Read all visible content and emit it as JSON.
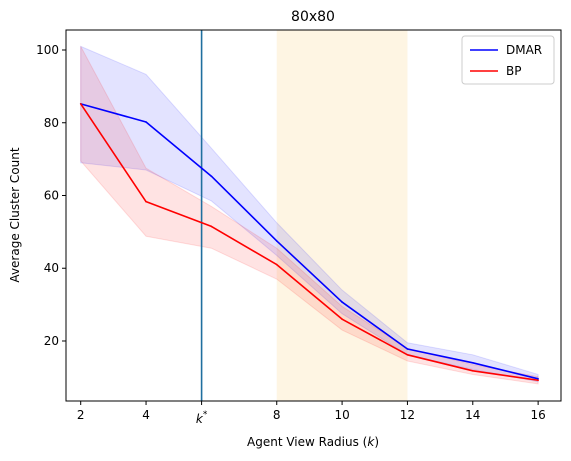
{
  "chart_data": {
    "type": "line",
    "title": "80x80",
    "xlabel": "Agent View Radius (k)",
    "ylabel": "Average Cluster Count",
    "xlim": [
      1.55,
      16.7
    ],
    "ylim": [
      3.5,
      105.5
    ],
    "xticks": [
      2,
      4,
      8,
      10,
      12,
      14,
      16
    ],
    "yticks": [
      20,
      40,
      60,
      80,
      100
    ],
    "special_tick": {
      "x": 5.7,
      "label": "k*"
    },
    "vertical_line": {
      "x": 5.7,
      "color": "#1f6f9f"
    },
    "highlight_band": {
      "x0": 8,
      "x1": 12,
      "color": "#fdebc8"
    },
    "legend": "top-right",
    "grid": false,
    "series": [
      {
        "name": "DMAR",
        "color": "#0000ff",
        "x": [
          2,
          4,
          6,
          8,
          10,
          12,
          14,
          16
        ],
        "y": [
          85.2,
          80.2,
          65.3,
          47.5,
          30.7,
          17.8,
          14.0,
          9.6
        ],
        "lower": [
          69.0,
          67.0,
          58.5,
          43.5,
          27.5,
          16.2,
          12.2,
          8.8
        ],
        "upper": [
          101.0,
          93.3,
          73.0,
          52.5,
          34.0,
          19.5,
          16.2,
          10.8
        ]
      },
      {
        "name": "BP",
        "color": "#ff0000",
        "x": [
          2,
          4,
          6,
          8,
          10,
          12,
          14,
          16
        ],
        "y": [
          85.2,
          58.3,
          51.5,
          41.0,
          26.0,
          16.2,
          11.8,
          9.2
        ],
        "lower": [
          69.5,
          48.8,
          45.5,
          37.0,
          23.0,
          14.5,
          10.8,
          8.2
        ],
        "upper": [
          101.0,
          67.5,
          57.0,
          45.5,
          29.5,
          18.0,
          13.5,
          10.2
        ]
      }
    ]
  }
}
